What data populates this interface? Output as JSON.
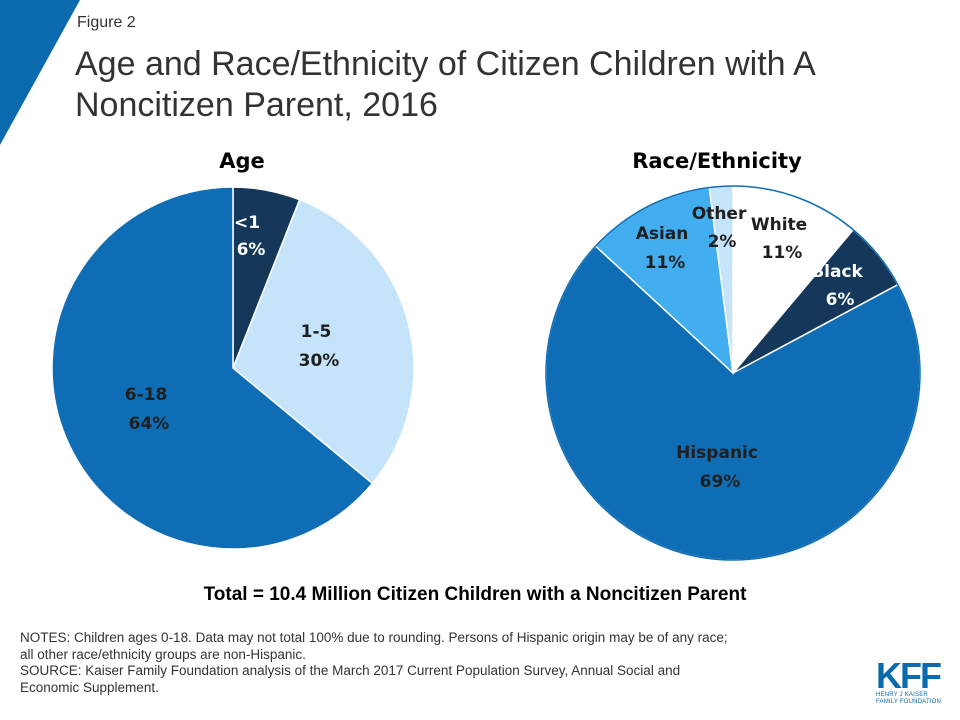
{
  "figure_label": "Figure 2",
  "title_line1": "Age and Race/Ethnicity of Citizen Children with A",
  "title_line2": "Noncitizen Parent, 2016",
  "total_line": "Total = 10.4 Million Citizen Children with a Noncitizen Parent",
  "notes_line1": "NOTES: Children ages 0-18. Data may not total 100% due to rounding. Persons of Hispanic origin may be of any race;",
  "notes_line2": "all other race/ethnicity groups are non-Hispanic.",
  "source_line1": "SOURCE: Kaiser Family Foundation analysis of the March 2017 Current Population Survey, Annual Social and",
  "source_line2": "Economic Supplement.",
  "logo": {
    "word": "KFF",
    "sub1": "HENRY J KAISER",
    "sub2": "FAMILY FOUNDATION"
  },
  "colors": {
    "accent": "#0b6aae",
    "dark_navy": "#14375a",
    "mid_blue": "#0e6db4",
    "light_blue": "#c5e4fa",
    "bright_blue": "#42aef0"
  },
  "chart_data": [
    {
      "type": "pie",
      "title": "Age",
      "slices": [
        {
          "label": "<1",
          "value": 6,
          "display": "6%",
          "color": "#14375a",
          "text_color": "#ffffff"
        },
        {
          "label": "1-5",
          "value": 30,
          "display": "30%",
          "color": "#c5e4fa",
          "text_color": "#1f1f1f"
        },
        {
          "label": "6-18",
          "value": 64,
          "display": "64%",
          "color": "#0e6db4",
          "text_color": "#1f1f1f"
        }
      ]
    },
    {
      "type": "pie",
      "title": "Race/Ethnicity",
      "slices": [
        {
          "label": "White",
          "value": 11,
          "display": "11%",
          "color": "#ffffff",
          "text_color": "#1f1f1f"
        },
        {
          "label": "Black",
          "value": 6,
          "display": "6%",
          "color": "#14375a",
          "text_color": "#ffffff"
        },
        {
          "label": "Hispanic",
          "value": 69,
          "display": "69%",
          "color": "#0e6db4",
          "text_color": "#1f1f1f"
        },
        {
          "label": "Asian",
          "value": 11,
          "display": "11%",
          "color": "#42aef0",
          "text_color": "#1f1f1f"
        },
        {
          "label": "Other",
          "value": 2,
          "display": "2%",
          "color": "#c5e4fa",
          "text_color": "#1f1f1f"
        }
      ]
    }
  ]
}
